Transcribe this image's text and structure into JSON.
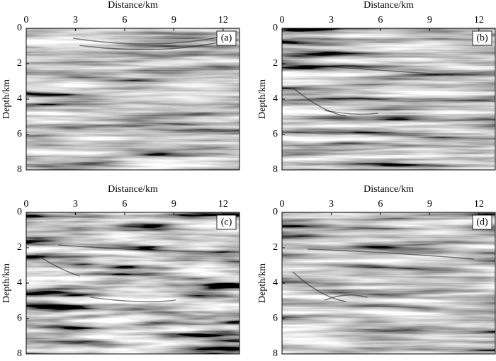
{
  "chart_data": [
    {
      "type": "seismic-image",
      "panel_label": "(a)",
      "xlabel": "Distance/km",
      "ylabel": "Depth/km",
      "xlim": [
        0,
        13
      ],
      "ylim": [
        0,
        8
      ],
      "xticks": [
        0,
        3,
        6,
        9,
        12
      ],
      "yticks": [
        0,
        2,
        4,
        6,
        8
      ]
    },
    {
      "type": "seismic-image",
      "panel_label": "(b)",
      "xlabel": "Distance/km",
      "ylabel": "Depth/km",
      "xlim": [
        0,
        13
      ],
      "ylim": [
        0,
        8
      ],
      "xticks": [
        0,
        3,
        6,
        9,
        12
      ],
      "yticks": [
        0,
        2,
        4,
        6,
        8
      ]
    },
    {
      "type": "seismic-image",
      "panel_label": "(c)",
      "xlabel": "Distance/km",
      "ylabel": "Depth/km",
      "xlim": [
        0,
        13
      ],
      "ylim": [
        0,
        8
      ],
      "xticks": [
        0,
        3,
        6,
        9,
        12
      ],
      "yticks": [
        0,
        2,
        4,
        6,
        8
      ]
    },
    {
      "type": "seismic-image",
      "panel_label": "(d)",
      "xlabel": "Distance/km",
      "ylabel": "Depth/km",
      "xlim": [
        0,
        13
      ],
      "ylim": [
        0,
        8
      ],
      "xticks": [
        0,
        3,
        6,
        9,
        12
      ],
      "yticks": [
        0,
        2,
        4,
        6,
        8
      ]
    }
  ]
}
